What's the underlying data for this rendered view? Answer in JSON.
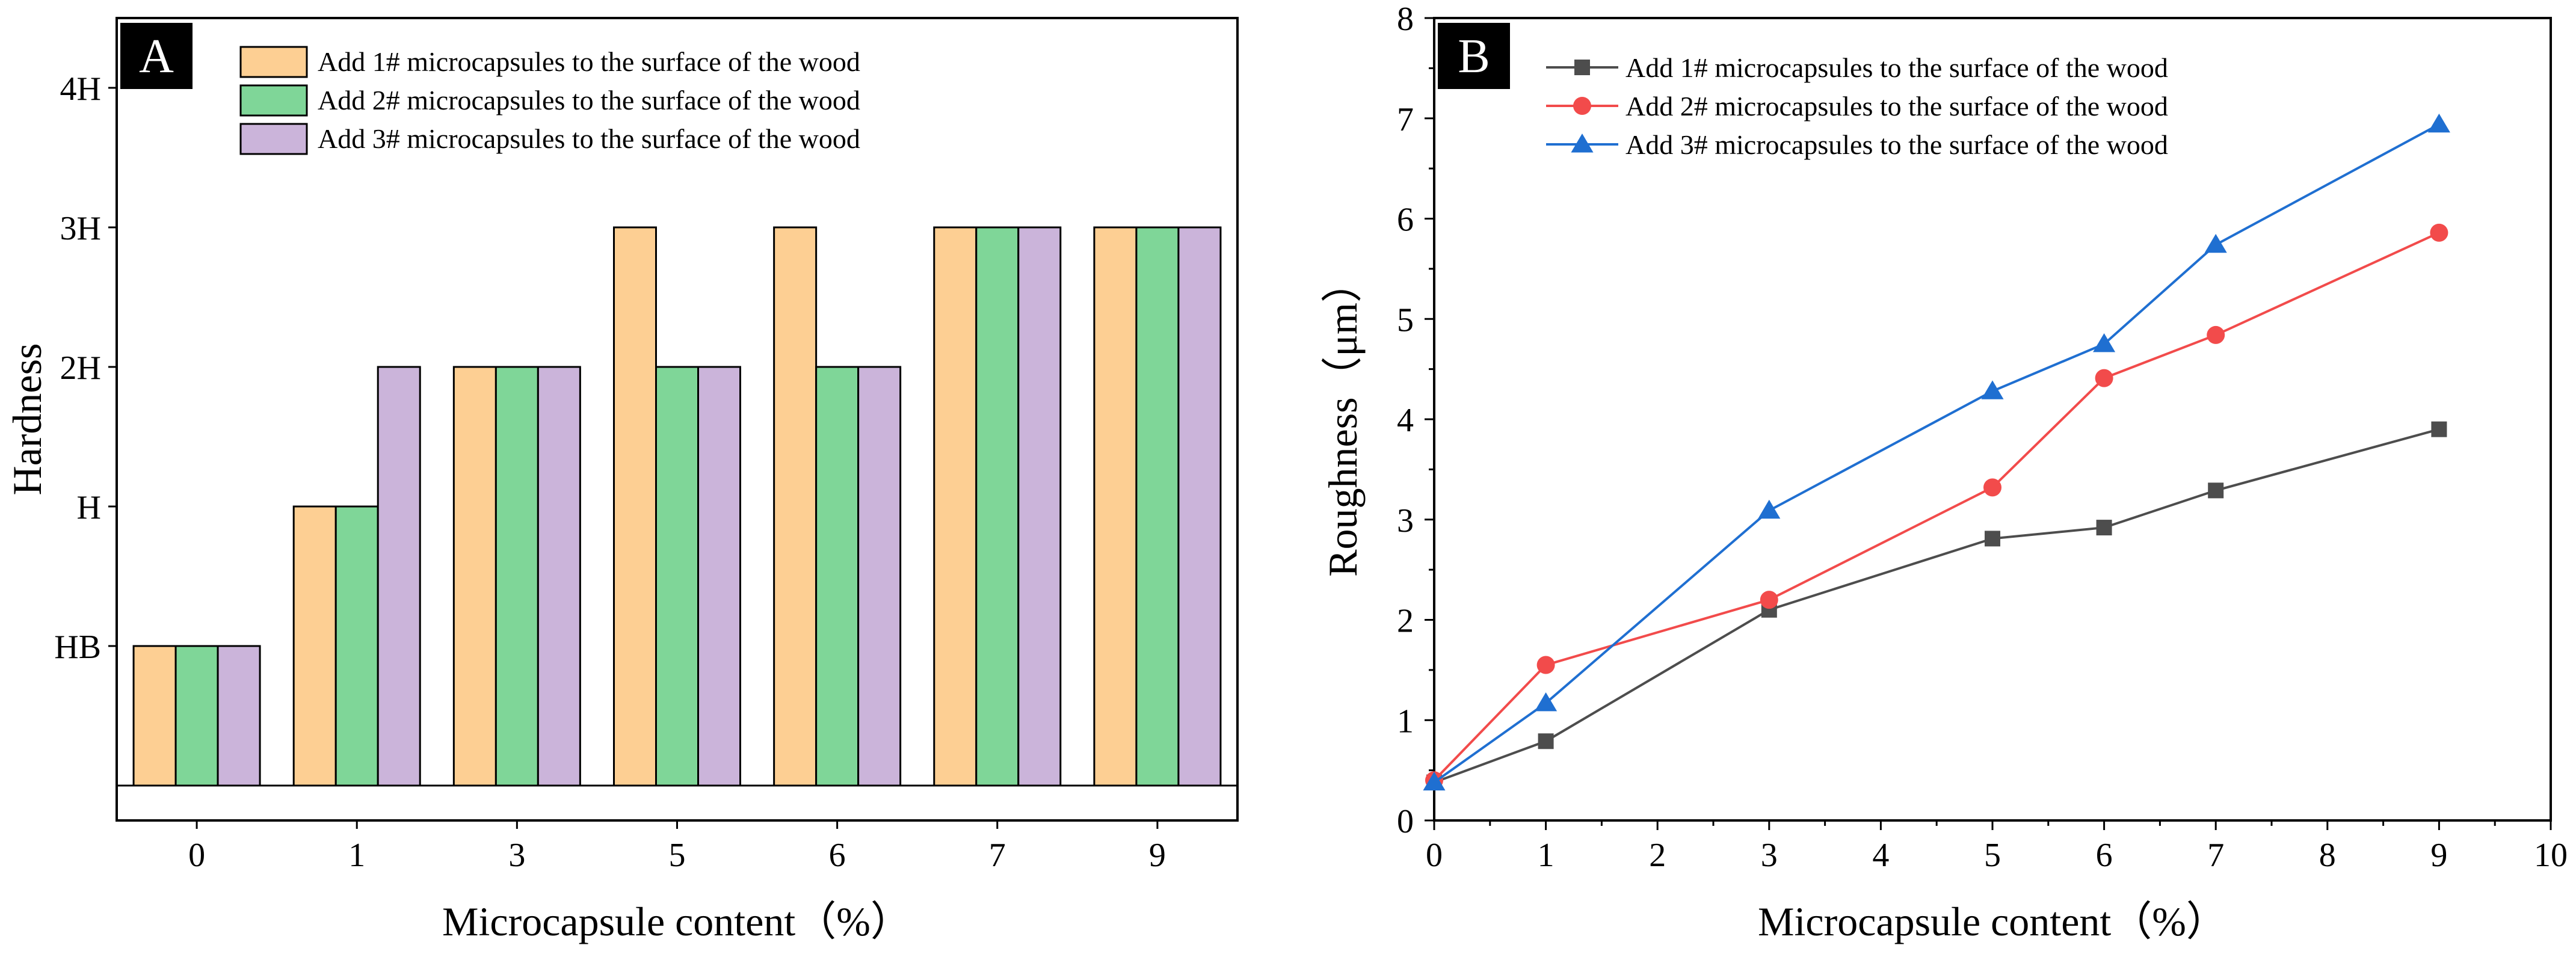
{
  "chart_data": [
    {
      "panel_label": "A",
      "type": "bar",
      "title": "",
      "xlabel": "Microcapsule content（%）",
      "ylabel": "Hardness",
      "categories": [
        "0",
        "1",
        "3",
        "5",
        "6",
        "7",
        "9"
      ],
      "yticks": [
        {
          "label": "HB",
          "value": 1
        },
        {
          "label": "H",
          "value": 2
        },
        {
          "label": "2H",
          "value": 3
        },
        {
          "label": "3H",
          "value": 4
        },
        {
          "label": "4H",
          "value": 5
        }
      ],
      "ylim": [
        -0.25,
        5.5
      ],
      "legend_position": "top-left",
      "series": [
        {
          "name": "Add 1# microcapsules to the surface of the wood",
          "color": "#FDCF93",
          "values": [
            1,
            2,
            3,
            4,
            4,
            4,
            4
          ]
        },
        {
          "name": "Add 2# microcapsules to the surface of the wood",
          "color": "#7FD698",
          "values": [
            1,
            2,
            3,
            3,
            3,
            4,
            4
          ]
        },
        {
          "name": "Add 3# microcapsules to the surface of the wood",
          "color": "#CBB4DA",
          "values": [
            1,
            3,
            3,
            3,
            3,
            4,
            4
          ]
        }
      ]
    },
    {
      "panel_label": "B",
      "type": "line",
      "title": "",
      "xlabel": "Microcapsule content（%）",
      "ylabel": "Roughness（μm）",
      "x": [
        0,
        1,
        3,
        5,
        6,
        7,
        9
      ],
      "xlim": [
        0,
        10
      ],
      "ylim": [
        0,
        8
      ],
      "xticks": [
        "0",
        "1",
        "2",
        "3",
        "4",
        "5",
        "6",
        "7",
        "8",
        "9",
        "10"
      ],
      "yticks": [
        "0",
        "1",
        "2",
        "3",
        "4",
        "5",
        "6",
        "7",
        "8"
      ],
      "legend_position": "top-left",
      "series": [
        {
          "name": "Add 1# microcapsules to the surface of the wood",
          "color": "#4D4D4D",
          "marker": "square",
          "values": [
            0.38,
            0.79,
            2.1,
            2.81,
            2.92,
            3.29,
            3.9
          ]
        },
        {
          "name": "Add 2# microcapsules to the surface of the wood",
          "color": "#F24B4B",
          "marker": "circle",
          "values": [
            0.4,
            1.55,
            2.2,
            3.32,
            4.41,
            4.84,
            5.86
          ]
        },
        {
          "name": "Add 3# microcapsules to the surface of the wood",
          "color": "#1F6FD1",
          "marker": "triangle",
          "values": [
            0.38,
            1.17,
            3.09,
            4.28,
            4.75,
            5.74,
            6.94
          ]
        }
      ]
    }
  ]
}
